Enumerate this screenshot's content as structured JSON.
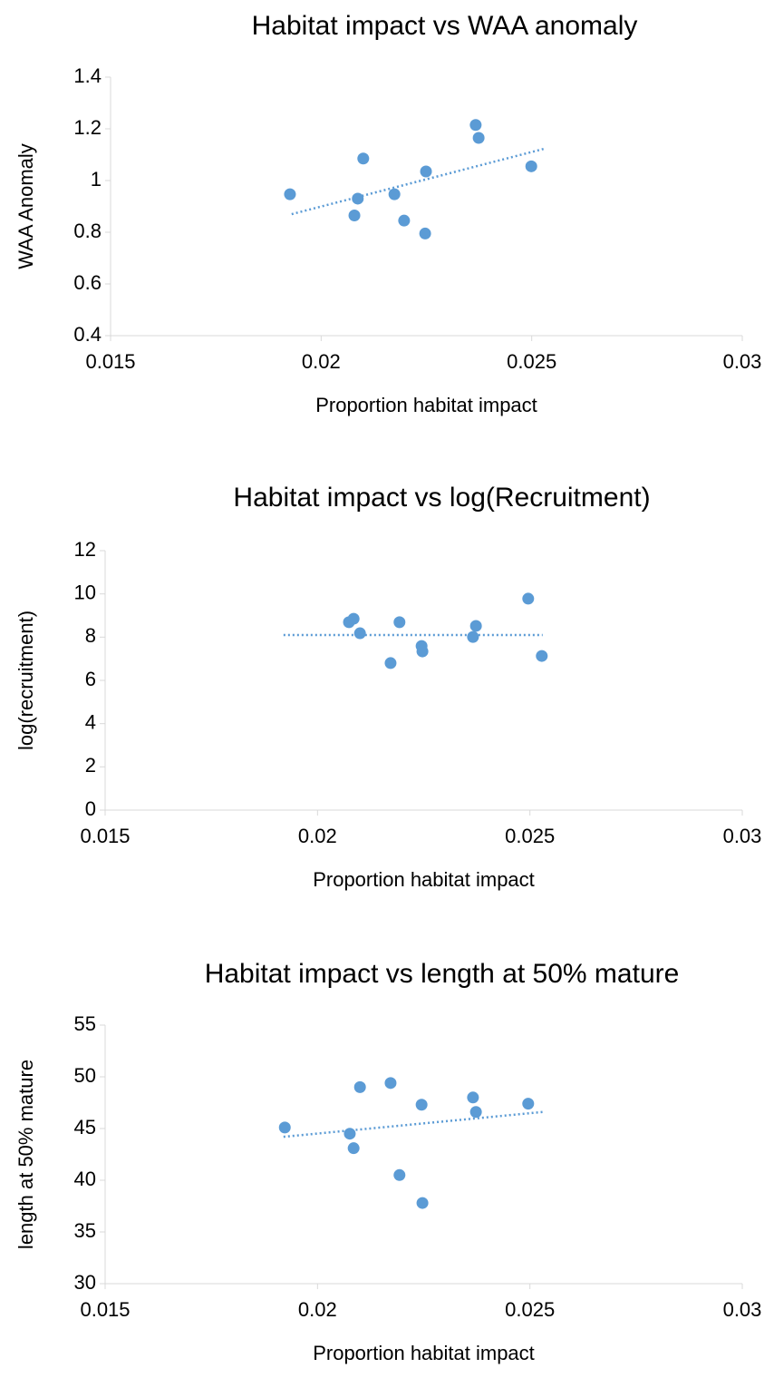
{
  "chart_data": [
    {
      "type": "scatter",
      "title": "Habitat impact vs WAA anomaly",
      "x_label": "Proportion habitat impact",
      "y_label": "WAA Anomaly",
      "color": "#5b9bd5",
      "x": [
        0.01926,
        0.02087,
        0.021,
        0.02079,
        0.02174,
        0.02197,
        0.02249,
        0.02247,
        0.02367,
        0.02374,
        0.02499
      ],
      "values": [
        0.947,
        0.93,
        1.085,
        0.865,
        0.947,
        0.845,
        1.035,
        0.795,
        1.215,
        1.165,
        1.055
      ],
      "trendline": {
        "x": [
          0.0193,
          0.0253
        ],
        "values": [
          0.87,
          1.123
        ]
      },
      "xlim": [
        0.015,
        0.03
      ],
      "xticks": [
        0.015,
        0.02,
        0.025,
        0.03
      ],
      "ylim": [
        0.4,
        1.4
      ],
      "yticks": [
        0.4,
        0.6,
        0.8,
        1,
        1.2,
        1.4
      ]
    },
    {
      "type": "scatter",
      "title": "Habitat impact vs log(Recruitment)",
      "x_label": "Proportion habitat impact",
      "y_label": "log(recruitment)",
      "color": "#5b9bd5",
      "x": [
        0.02074,
        0.02085,
        0.021,
        0.02193,
        0.02172,
        0.02245,
        0.02247,
        0.02366,
        0.02373,
        0.02496,
        0.02528
      ],
      "values": [
        8.69,
        8.85,
        8.18,
        8.69,
        6.8,
        7.59,
        7.34,
        8.01,
        8.52,
        9.78,
        7.13
      ],
      "trendline": {
        "x": [
          0.0192,
          0.0253
        ],
        "values": [
          8.1,
          8.1
        ]
      },
      "xlim": [
        0.015,
        0.03
      ],
      "xticks": [
        0.015,
        0.02,
        0.025,
        0.03
      ],
      "ylim": [
        0,
        12
      ],
      "yticks": [
        0,
        2,
        4,
        6,
        8,
        10,
        12
      ]
    },
    {
      "type": "scatter",
      "title": "Habitat impact vs length at 50% mature",
      "x_label": "Proportion habitat impact",
      "y_label": "length at 50% mature",
      "color": "#5b9bd5",
      "x": [
        0.01923,
        0.02076,
        0.02085,
        0.021,
        0.02172,
        0.02193,
        0.02245,
        0.02247,
        0.02366,
        0.02373,
        0.02496
      ],
      "values": [
        45.1,
        44.5,
        43.1,
        49.0,
        49.4,
        40.5,
        47.3,
        37.8,
        48.0,
        46.6,
        47.4
      ],
      "trendline": {
        "x": [
          0.0192,
          0.0253
        ],
        "values": [
          44.2,
          46.6
        ]
      },
      "xlim": [
        0.015,
        0.03
      ],
      "xticks": [
        0.015,
        0.02,
        0.025,
        0.03
      ],
      "ylim": [
        30,
        55
      ],
      "yticks": [
        30,
        35,
        40,
        45,
        50,
        55
      ]
    }
  ]
}
